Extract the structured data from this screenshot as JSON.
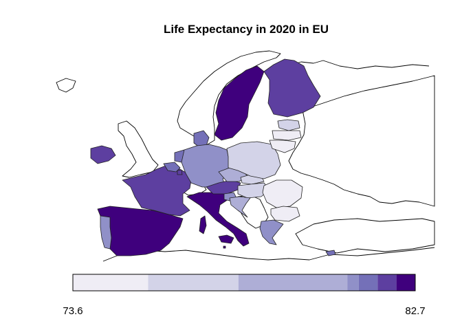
{
  "title": "Life Expectancy in 2020 in EU",
  "legend": {
    "min_label": "73.6",
    "max_label": "82.7",
    "breaks": [
      73.6,
      75.6,
      78.0,
      80.9,
      81.2,
      81.7,
      82.2,
      82.7
    ],
    "colors": [
      "#efedf5",
      "#d3d3e8",
      "#aeaed6",
      "#9090c8",
      "#7470b8",
      "#5d3fa0",
      "#3f007d"
    ]
  },
  "chart_data": {
    "type": "choropleth",
    "title": "Life Expectancy in 2020 in EU",
    "value_range": [
      73.6,
      82.7
    ],
    "regions": [
      {
        "name": "Spain",
        "bin": 6
      },
      {
        "name": "Portugal",
        "bin": 3
      },
      {
        "name": "France",
        "bin": 5
      },
      {
        "name": "Italy",
        "bin": 6
      },
      {
        "name": "Ireland",
        "bin": 5
      },
      {
        "name": "Belgium",
        "bin": 4
      },
      {
        "name": "Netherlands",
        "bin": 4
      },
      {
        "name": "Luxembourg",
        "bin": 5
      },
      {
        "name": "Denmark",
        "bin": 4
      },
      {
        "name": "Germany",
        "bin": 3
      },
      {
        "name": "Austria",
        "bin": 5
      },
      {
        "name": "Czechia",
        "bin": 2
      },
      {
        "name": "Slovakia",
        "bin": 1
      },
      {
        "name": "Hungary",
        "bin": 1
      },
      {
        "name": "Poland",
        "bin": 1
      },
      {
        "name": "Slovenia",
        "bin": 3
      },
      {
        "name": "Croatia",
        "bin": 2
      },
      {
        "name": "Romania",
        "bin": 0
      },
      {
        "name": "Bulgaria",
        "bin": 0
      },
      {
        "name": "Greece",
        "bin": 3
      },
      {
        "name": "Cyprus",
        "bin": 4
      },
      {
        "name": "Malta",
        "bin": 6
      },
      {
        "name": "Sweden",
        "bin": 6
      },
      {
        "name": "Finland",
        "bin": 5
      },
      {
        "name": "Estonia",
        "bin": 1
      },
      {
        "name": "Latvia",
        "bin": 0
      },
      {
        "name": "Lithuania",
        "bin": 0
      }
    ]
  }
}
